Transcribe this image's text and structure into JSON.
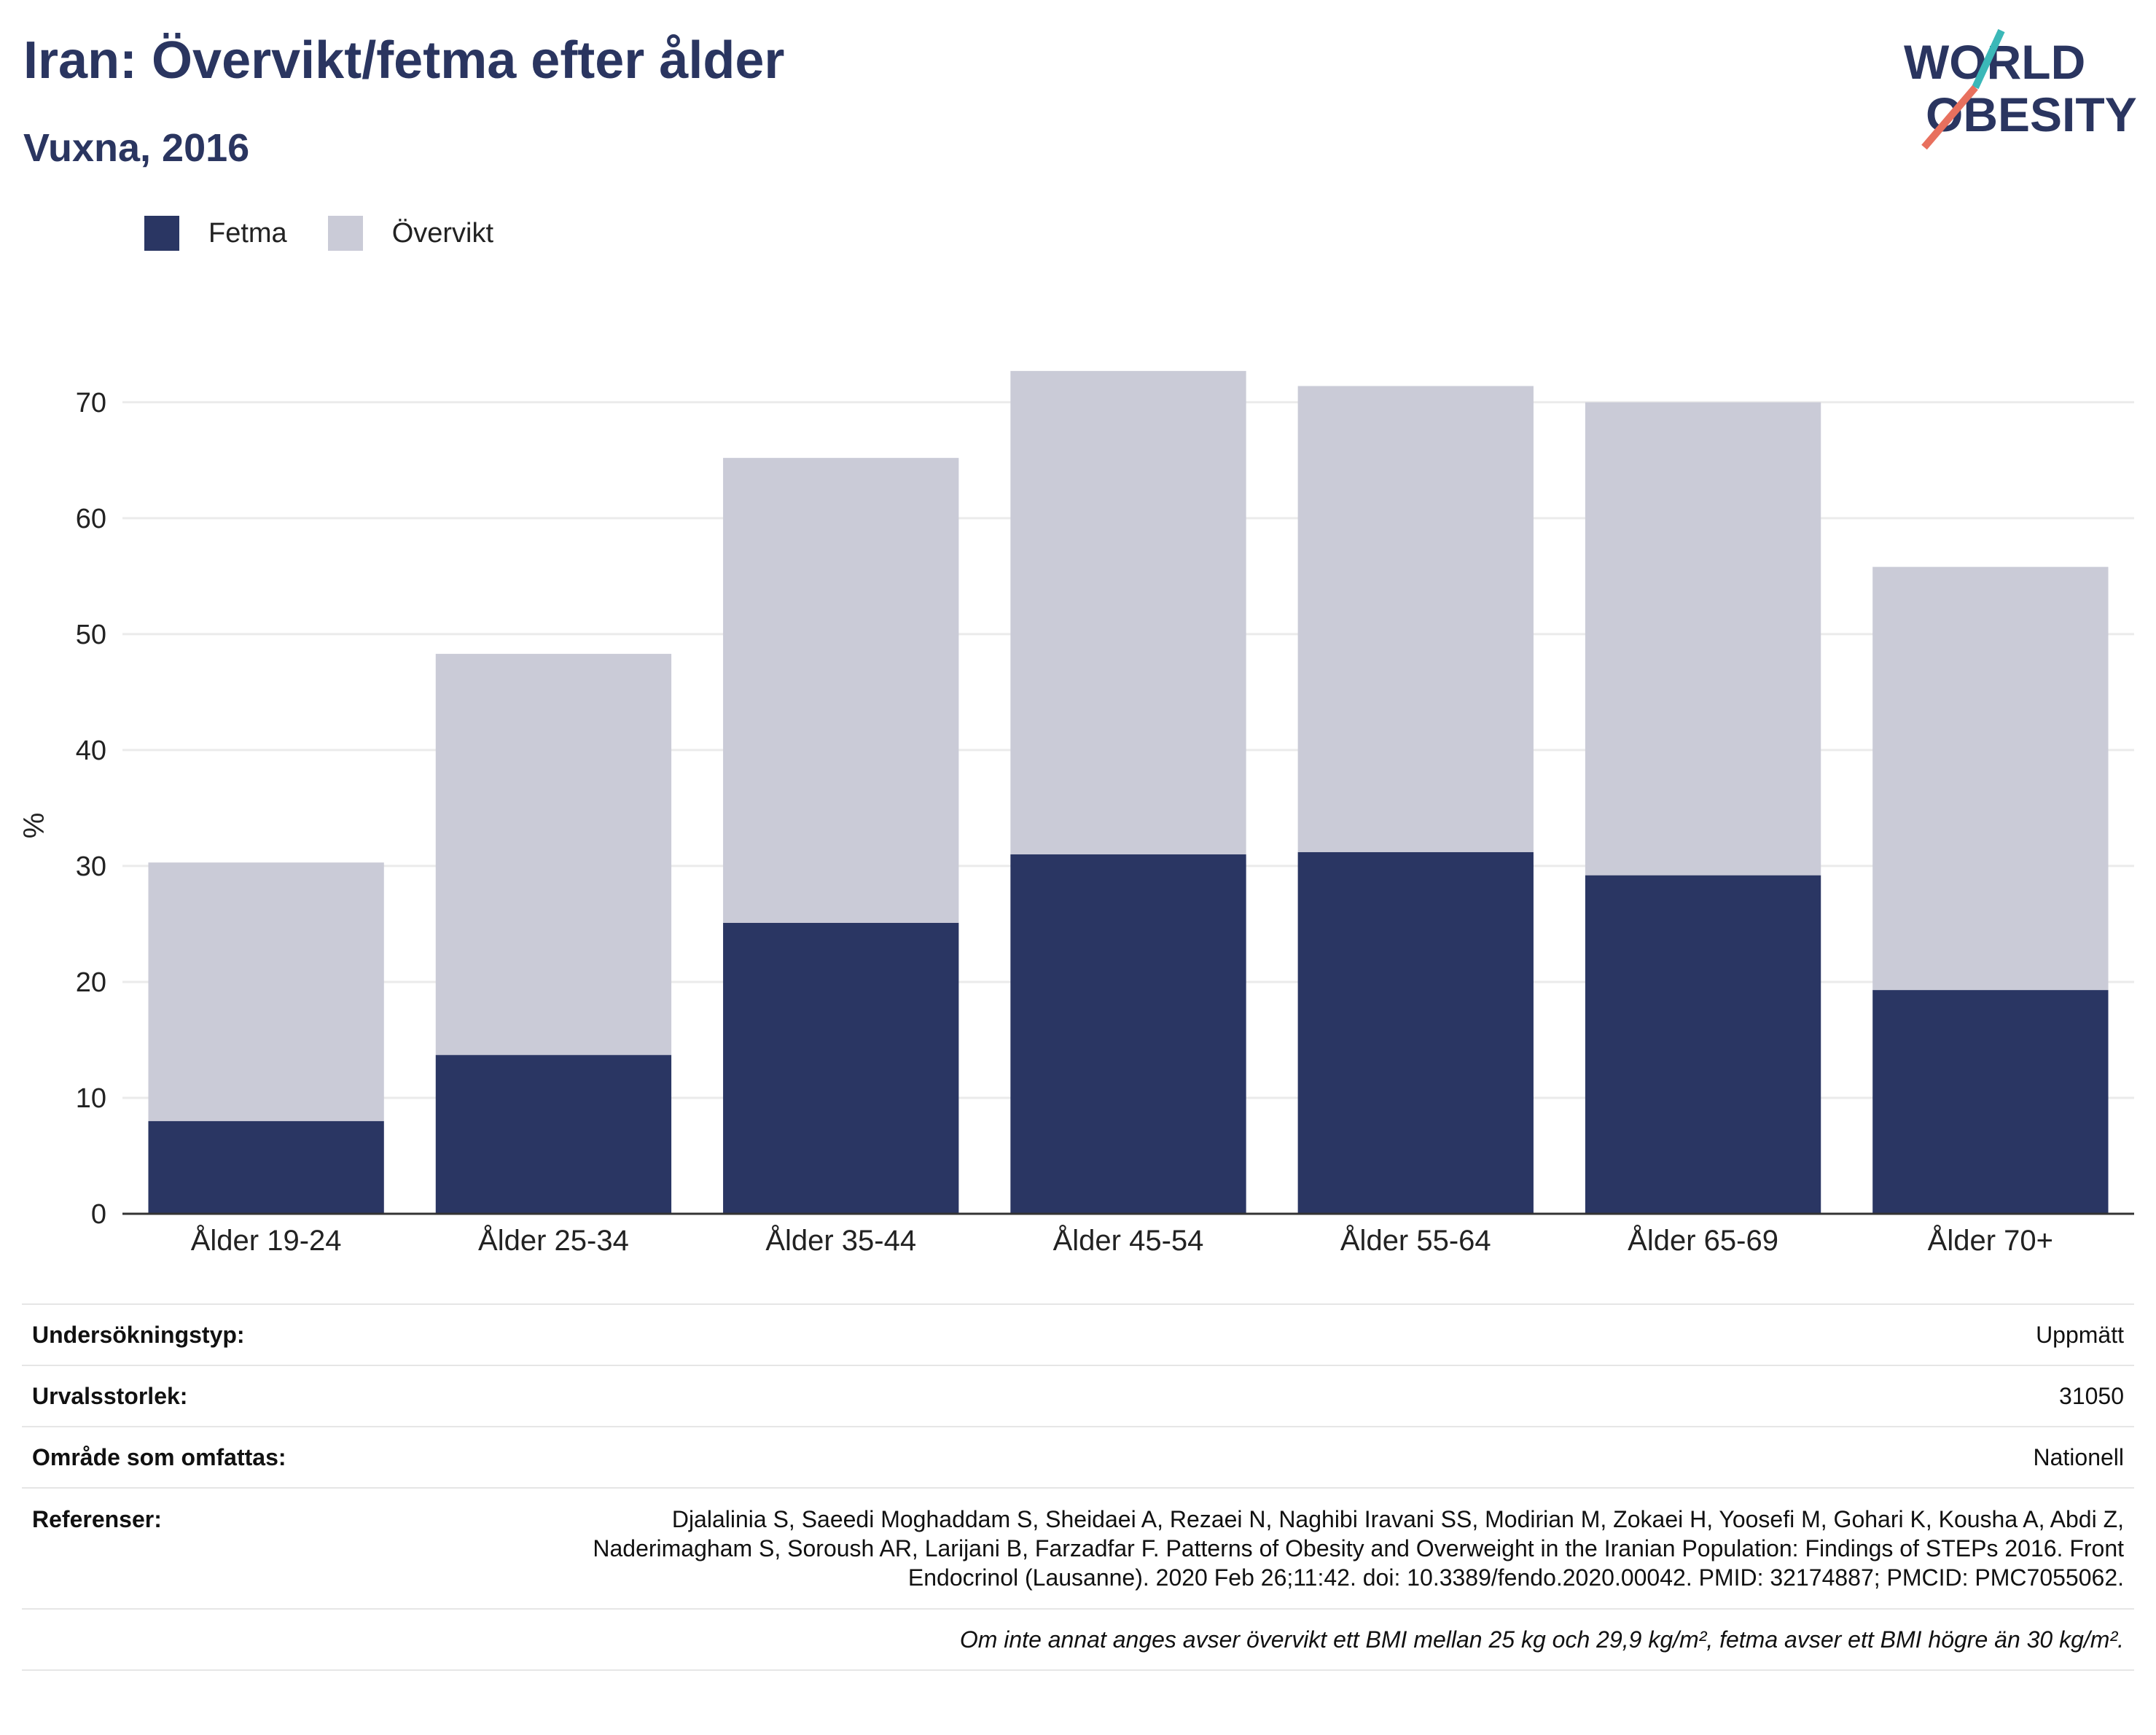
{
  "header": {
    "title": "Iran: Övervikt/fetma efter ålder",
    "subtitle": "Vuxna, 2016"
  },
  "logo": {
    "line1": "WORLD",
    "line2": "OBESITY"
  },
  "colors": {
    "fetma": "#2a3663",
    "overvikt": "#cacbd7",
    "title": "#2a3560",
    "teal": "#3bb8b8",
    "coral": "#e8705e"
  },
  "legend": {
    "fetma": "Fetma",
    "overvikt": "Övervikt"
  },
  "chart_data": {
    "type": "bar",
    "stacked": true,
    "categories": [
      "Ålder 19-24",
      "Ålder 25-34",
      "Ålder 35-44",
      "Ålder 45-54",
      "Ålder 55-64",
      "Ålder 65-69",
      "Ålder 70+"
    ],
    "series": [
      {
        "name": "Fetma",
        "values": [
          8.0,
          13.7,
          25.1,
          31.0,
          31.2,
          29.2,
          19.3
        ]
      },
      {
        "name": "Övervikt",
        "values": [
          22.3,
          34.6,
          40.1,
          41.7,
          40.2,
          40.8,
          36.5
        ]
      }
    ],
    "ylabel": "%",
    "xlabel": "",
    "ylim": [
      0,
      72
    ],
    "yticks": [
      0,
      10,
      20,
      30,
      40,
      50,
      60,
      70
    ],
    "grid": true,
    "legend_position": "top-left"
  },
  "info": {
    "survey_type_label": "Undersökningstyp:",
    "survey_type_value": "Uppmätt",
    "sample_size_label": "Urvalsstorlek:",
    "sample_size_value": "31050",
    "area_label": "Område som omfattas:",
    "area_value": "Nationell",
    "references_label": "Referenser:",
    "references_value": "Djalalinia S, Saeedi Moghaddam S, Sheidaei A, Rezaei N, Naghibi Iravani SS, Modirian M, Zokaei H, Yoosefi M, Gohari K, Kousha A, Abdi Z, Naderimagham S, Soroush AR, Larijani B, Farzadfar F. Patterns of Obesity and Overweight in the Iranian Population: Findings of STEPs 2016. Front Endocrinol (Lausanne). 2020 Feb 26;11:42. doi: 10.3389/fendo.2020.00042. PMID: 32174887; PMCID: PMC7055062.",
    "note": "Om inte annat anges avser övervikt ett BMI mellan 25 kg och 29,9 kg/m², fetma avser ett BMI högre än 30 kg/m²."
  }
}
